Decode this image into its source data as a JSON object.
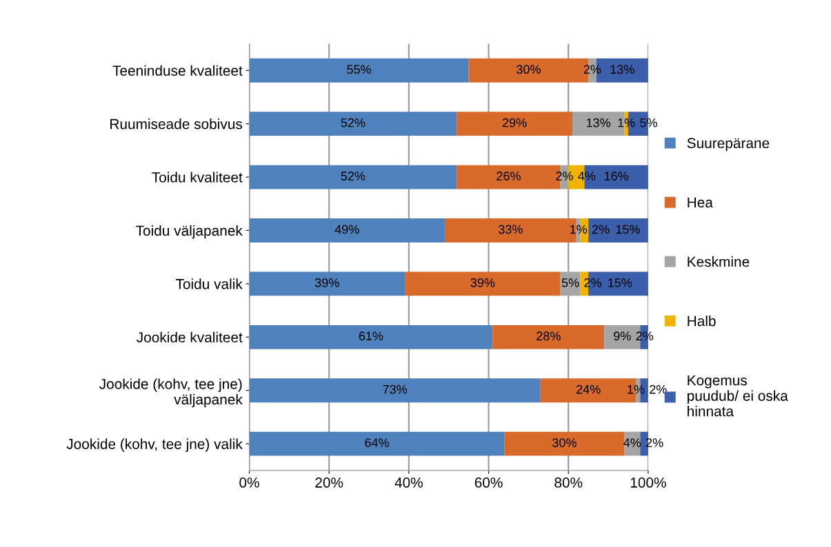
{
  "chart_data": {
    "type": "bar",
    "orientation": "horizontal",
    "stacked": true,
    "categories": [
      "Teeninduse kvaliteet",
      "Ruumiseade sobivus",
      "Toidu kvaliteet",
      "Toidu väljapanek",
      "Toidu valik",
      "Jookide kvaliteet",
      "Jookide (kohv, tee jne)\nväljapanek",
      "Jookide (kohv, tee jne) valik"
    ],
    "series": [
      {
        "name": "Suurepärane",
        "color": "#4f81bd",
        "values": [
          55,
          52,
          52,
          49,
          39,
          61,
          73,
          64
        ],
        "value_labels": [
          "55%",
          "52%",
          "52%",
          "49%",
          "39%",
          "61%",
          "73%",
          "64%"
        ]
      },
      {
        "name": "Hea",
        "color": "#d86b2b",
        "values": [
          30,
          29,
          26,
          33,
          39,
          28,
          24,
          30
        ],
        "value_labels": [
          "30%",
          "29%",
          "26%",
          "33%",
          "39%",
          "28%",
          "24%",
          "30%"
        ]
      },
      {
        "name": "Keskmine",
        "color": "#a5a5a5",
        "values": [
          2,
          13,
          2,
          1,
          5,
          9,
          1,
          4
        ],
        "value_labels": [
          "2%",
          "13%",
          "2%",
          "1%",
          "5%",
          "9%",
          "1%",
          "4%"
        ]
      },
      {
        "name": "Halb",
        "color": "#f0b400",
        "values": [
          null,
          1,
          4,
          2,
          2,
          null,
          null,
          null
        ],
        "value_labels": [
          null,
          "1%",
          "4%",
          "2%",
          "2%",
          null,
          null,
          null
        ]
      },
      {
        "name": "Kogemus\npuudub/ ei oska\nhinnata",
        "color": "#3b5faa",
        "values": [
          13,
          5,
          16,
          15,
          15,
          2,
          2,
          2
        ],
        "value_labels": [
          "13%",
          "5%",
          "16%",
          "15%",
          "15%",
          "2%",
          "2%",
          "2%"
        ]
      }
    ],
    "xlim": [
      0,
      100
    ],
    "xticks": [
      {
        "value": 0,
        "label": "0%"
      },
      {
        "value": 20,
        "label": "20%"
      },
      {
        "value": 40,
        "label": "40%"
      },
      {
        "value": 60,
        "label": "60%"
      },
      {
        "value": 80,
        "label": "80%"
      },
      {
        "value": 100,
        "label": "100%"
      }
    ],
    "grid": "x",
    "legend": "right"
  }
}
